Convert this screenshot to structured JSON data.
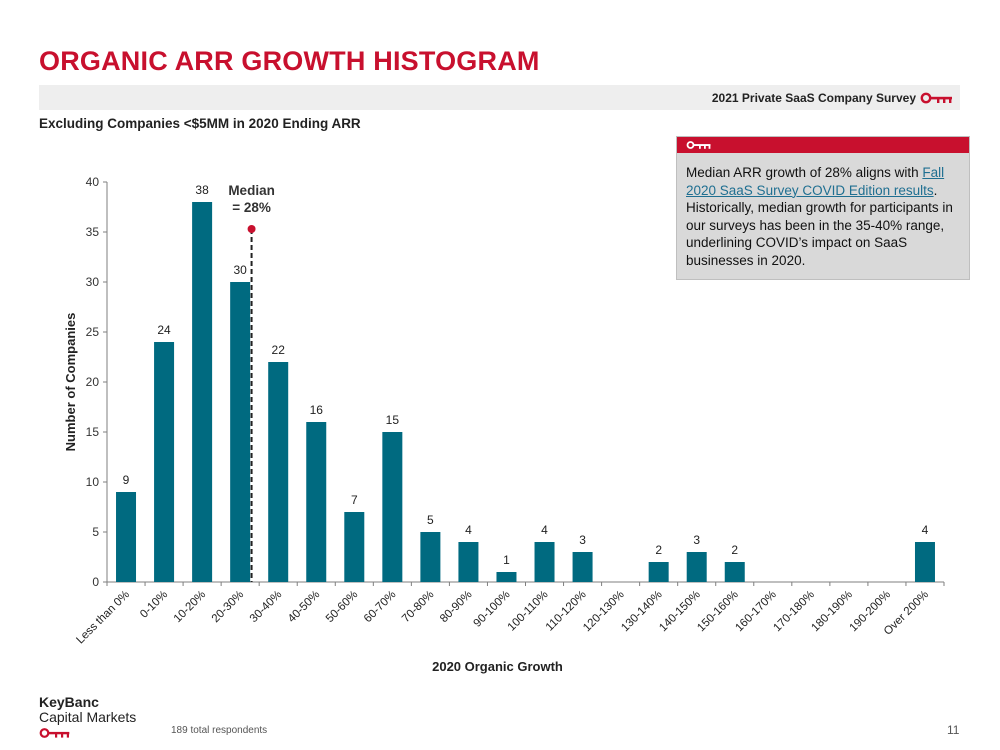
{
  "header": {
    "title": "ORGANIC ARR GROWTH HISTOGRAM",
    "survey_label": "2021 Private SaaS Company Survey",
    "subtitle": "Excluding Companies <$5MM in 2020 Ending ARR"
  },
  "callout": {
    "text_before": "Median ARR growth of 28% aligns with ",
    "link_text": "Fall 2020 SaaS Survey COVID Edition results",
    "text_after": ". Historically, median growth for participants in our surveys has been in the 35-40% range, underlining COVID’s impact on SaaS businesses in 2020."
  },
  "footer": {
    "logo_line1": "KeyBanc",
    "logo_line2": "Capital Markets",
    "respondents": "189 total respondents",
    "page_number": "11"
  },
  "colors": {
    "brand_red": "#c8102e",
    "bar": "#006a80",
    "median_marker": "#c8102e"
  },
  "chart_data": {
    "type": "bar",
    "xlabel": "2020 Organic Growth",
    "ylabel": "Number of Companies",
    "ylim": [
      0,
      40
    ],
    "yticks": [
      0,
      5,
      10,
      15,
      20,
      25,
      30,
      35,
      40
    ],
    "categories": [
      "Less than 0%",
      "0-10%",
      "10-20%",
      "20-30%",
      "30-40%",
      "40-50%",
      "50-60%",
      "60-70%",
      "70-80%",
      "80-90%",
      "90-100%",
      "100-110%",
      "110-120%",
      "120-130%",
      "130-140%",
      "140-150%",
      "150-160%",
      "160-170%",
      "170-180%",
      "180-190%",
      "190-200%",
      "Over 200%"
    ],
    "values": [
      9,
      24,
      38,
      30,
      22,
      16,
      7,
      15,
      5,
      4,
      1,
      4,
      3,
      0,
      2,
      3,
      2,
      0,
      0,
      0,
      0,
      4
    ],
    "median": {
      "label_line1": "Median",
      "label_line2": "= 28%",
      "value": 28
    },
    "grid": false
  }
}
